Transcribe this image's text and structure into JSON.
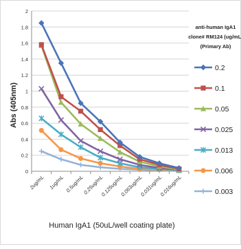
{
  "chart_data": {
    "type": "line",
    "title": "",
    "ylabel": "Abs (405nm)",
    "xlabel": "Human IgA1 (50uL/well coating plate)",
    "legend_title": "anti-human IgA1 clone# RM124 (ug/mL) (Primary Ab)",
    "legend_title_lines": [
      "anti-human IgA1",
      "clone# RM124 (ug/mL)",
      "(Primary Ab)"
    ],
    "legend_position": "right",
    "grid": true,
    "ylim": [
      0,
      2
    ],
    "yticks": [
      "0",
      "0.2",
      "0.4",
      "0.6",
      "0.8",
      "1",
      "1.2",
      "1.4",
      "1.6",
      "1.8",
      "2"
    ],
    "categories": [
      "2ug/mL",
      "1ug/mL",
      "0.5ug/mL",
      "0.25ug/mL",
      "0.125ug/mL",
      "0.063ug/mL",
      "0.031ug/mL",
      "0.016ug/mL"
    ],
    "series": [
      {
        "name": "0.2",
        "color": "#4a74b8",
        "marker": "diamond",
        "values": [
          1.85,
          1.35,
          0.85,
          0.62,
          0.36,
          0.18,
          0.1,
          0.04
        ]
      },
      {
        "name": "0.1",
        "color": "#c0504d",
        "marker": "square",
        "values": [
          1.58,
          0.93,
          0.75,
          0.52,
          0.32,
          0.15,
          0.08,
          0.03
        ]
      },
      {
        "name": "0.05",
        "color": "#9bbb59",
        "marker": "triangle",
        "values": [
          1.57,
          0.86,
          0.59,
          0.41,
          0.24,
          0.12,
          0.06,
          0.02
        ]
      },
      {
        "name": "0.025",
        "color": "#8064a2",
        "marker": "x",
        "values": [
          1.03,
          0.64,
          0.38,
          0.25,
          0.15,
          0.08,
          0.04,
          0.02
        ]
      },
      {
        "name": "0.013",
        "color": "#4bacc6",
        "marker": "star",
        "values": [
          0.66,
          0.46,
          0.3,
          0.17,
          0.1,
          0.05,
          0.03,
          0.01
        ]
      },
      {
        "name": "0.006",
        "color": "#f79646",
        "marker": "circle",
        "values": [
          0.51,
          0.27,
          0.16,
          0.1,
          0.06,
          0.03,
          0.02,
          0.01
        ]
      },
      {
        "name": "0.003",
        "color": "#95b3d7",
        "marker": "plus",
        "values": [
          0.25,
          0.15,
          0.08,
          0.05,
          0.03,
          0.02,
          0.01,
          0.01
        ]
      }
    ]
  }
}
